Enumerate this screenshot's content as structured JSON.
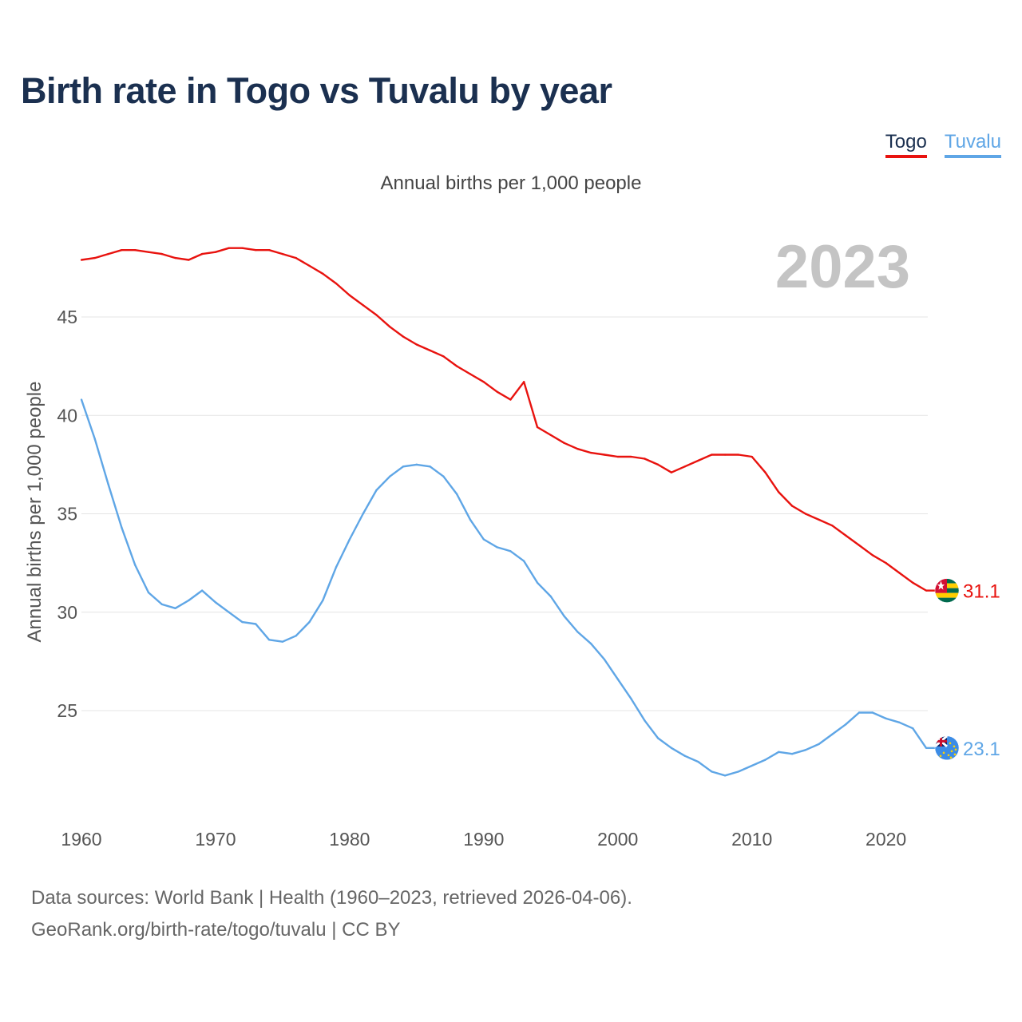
{
  "title": "Birth rate in Togo vs Tuvalu by year",
  "subtitle": "Annual births per 1,000 people",
  "legend": [
    {
      "label": "Togo",
      "color": "#e8130f"
    },
    {
      "label": "Tuvalu",
      "color": "#5fa6e6"
    }
  ],
  "year_watermark": "2023",
  "footer": {
    "line1": "Data sources: World Bank | Health (1960–2023, retrieved 2026-04-06).",
    "line2": "GeoRank.org/birth-rate/togo/tuvalu | CC BY"
  },
  "chart_data": {
    "type": "line",
    "title": "Birth rate in Togo vs Tuvalu by year",
    "xlabel": "",
    "ylabel": "Annual births per 1,000 people",
    "x": [
      1960,
      1961,
      1962,
      1963,
      1964,
      1965,
      1966,
      1967,
      1968,
      1969,
      1970,
      1971,
      1972,
      1973,
      1974,
      1975,
      1976,
      1977,
      1978,
      1979,
      1980,
      1981,
      1982,
      1983,
      1984,
      1985,
      1986,
      1987,
      1988,
      1989,
      1990,
      1991,
      1992,
      1993,
      1994,
      1995,
      1996,
      1997,
      1998,
      1999,
      2000,
      2001,
      2002,
      2003,
      2004,
      2005,
      2006,
      2007,
      2008,
      2009,
      2010,
      2011,
      2012,
      2013,
      2014,
      2015,
      2016,
      2017,
      2018,
      2019,
      2020,
      2021,
      2022,
      2023
    ],
    "xlim": [
      1960,
      2023
    ],
    "xticks": [
      1960,
      1970,
      1980,
      1990,
      2000,
      2010,
      2020
    ],
    "ylim": [
      20,
      50
    ],
    "yticks": [
      25,
      30,
      35,
      40,
      45
    ],
    "grid": true,
    "series": [
      {
        "name": "Togo",
        "color": "#e8130f",
        "values": [
          47.9,
          48.0,
          48.2,
          48.4,
          48.4,
          48.3,
          48.2,
          48.0,
          47.9,
          48.2,
          48.3,
          48.5,
          48.5,
          48.4,
          48.4,
          48.2,
          48.0,
          47.6,
          47.2,
          46.7,
          46.1,
          45.6,
          45.1,
          44.5,
          44.0,
          43.6,
          43.3,
          43.0,
          42.5,
          42.1,
          41.7,
          41.2,
          40.8,
          41.7,
          39.4,
          39.0,
          38.6,
          38.3,
          38.1,
          38.0,
          37.9,
          37.9,
          37.8,
          37.5,
          37.1,
          37.4,
          37.7,
          38.0,
          38.0,
          38.0,
          37.9,
          37.1,
          36.1,
          35.4,
          35.0,
          34.7,
          34.4,
          33.9,
          33.4,
          32.9,
          32.5,
          32.0,
          31.5,
          31.1
        ],
        "end_label": "31.1"
      },
      {
        "name": "Tuvalu",
        "color": "#5fa6e6",
        "values": [
          40.8,
          38.8,
          36.5,
          34.3,
          32.4,
          31.0,
          30.4,
          30.2,
          30.6,
          31.1,
          30.5,
          30.0,
          29.5,
          29.4,
          28.6,
          28.5,
          28.8,
          29.5,
          30.6,
          32.3,
          33.7,
          35.0,
          36.2,
          36.9,
          37.4,
          37.5,
          37.4,
          36.9,
          36.0,
          34.7,
          33.7,
          33.3,
          33.1,
          32.6,
          31.5,
          30.8,
          29.8,
          29.0,
          28.4,
          27.6,
          26.6,
          25.6,
          24.5,
          23.6,
          23.1,
          22.7,
          22.4,
          21.9,
          21.7,
          21.9,
          22.2,
          22.5,
          22.9,
          22.8,
          23.0,
          23.3,
          23.8,
          24.3,
          24.9,
          24.9,
          24.6,
          24.4,
          24.1,
          23.1
        ],
        "end_label": "23.1"
      }
    ]
  }
}
